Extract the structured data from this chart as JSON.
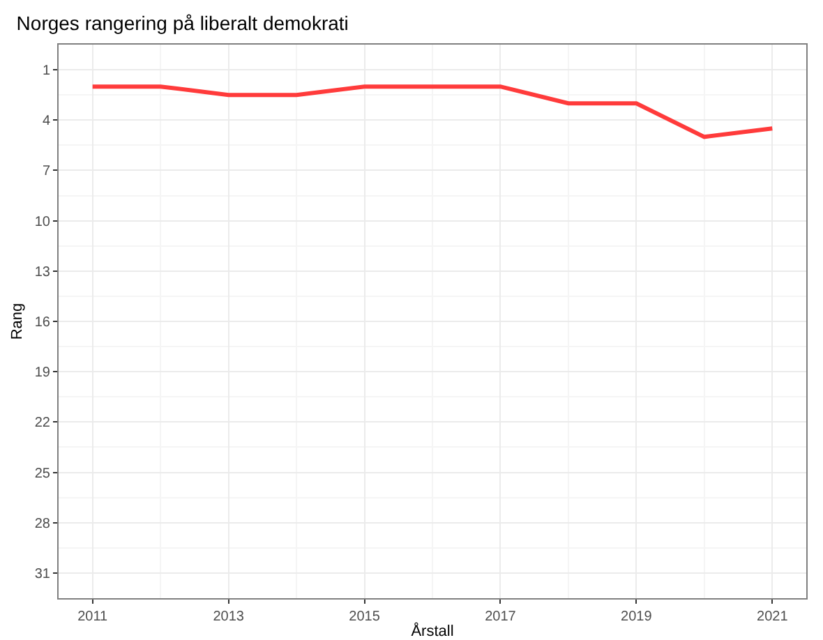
{
  "chart_data": {
    "type": "line",
    "title": "Norges rangering på liberalt demokrati",
    "xlabel": "Årstall",
    "ylabel": "Rang",
    "x": [
      2011,
      2012,
      2013,
      2014,
      2015,
      2016,
      2017,
      2018,
      2019,
      2020,
      2021
    ],
    "series": [
      {
        "color": "#ff3b3b",
        "values": [
          2,
          2,
          2.5,
          2.5,
          2,
          2,
          2,
          3,
          3,
          5,
          4.5
        ]
      }
    ],
    "xlim": [
      2010.5,
      2021.5
    ],
    "xticks": [
      2011,
      2013,
      2015,
      2017,
      2019,
      2021
    ],
    "ylim": [
      32.5,
      -0.5
    ],
    "yticks": [
      1,
      4,
      7,
      10,
      13,
      16,
      19,
      22,
      25,
      28,
      31
    ],
    "grid": true,
    "marker": "none",
    "line_style": "solid"
  }
}
